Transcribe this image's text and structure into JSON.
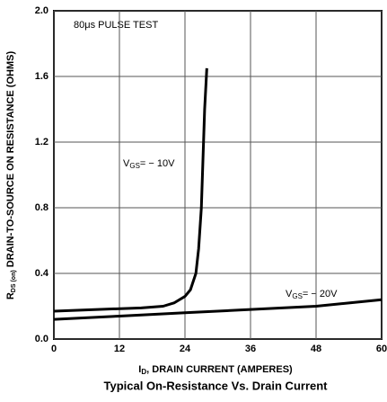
{
  "chart_data": {
    "type": "line",
    "title": "Typical On-Resistance Vs. Drain Current",
    "x_label": [
      "I",
      "D",
      ", DRAIN CURRENT (AMPERES)"
    ],
    "y_label": [
      "R",
      "DS (on)",
      " DRAIN-TO-SOURCE ON RESISTANCE (OHMS)"
    ],
    "annotation": "80μs PULSE TEST",
    "xlim": [
      0,
      60
    ],
    "ylim": [
      0,
      2
    ],
    "xticks": [
      0,
      12,
      24,
      36,
      48,
      60
    ],
    "yticks": [
      {
        "value": 0,
        "label": "0.0"
      },
      0.4,
      0.8,
      1.2,
      1.6,
      {
        "value": 2,
        "label": "2.0"
      }
    ],
    "grid": true,
    "series": [
      {
        "name": [
          "V",
          "GS",
          "= − 10V"
        ],
        "color": "#000000",
        "x": [
          0,
          8,
          16,
          20,
          22,
          24,
          25,
          26,
          26.5,
          27,
          27.3,
          27.6,
          28
        ],
        "values": [
          0.17,
          0.18,
          0.19,
          0.2,
          0.22,
          0.26,
          0.3,
          0.4,
          0.55,
          0.8,
          1.1,
          1.4,
          1.65
        ]
      },
      {
        "name": [
          "V",
          "GS",
          "= − 20V"
        ],
        "color": "#000000",
        "x": [
          0,
          12,
          24,
          36,
          48,
          54,
          60
        ],
        "values": [
          0.12,
          0.14,
          0.16,
          0.18,
          0.2,
          0.22,
          0.24
        ]
      }
    ]
  }
}
